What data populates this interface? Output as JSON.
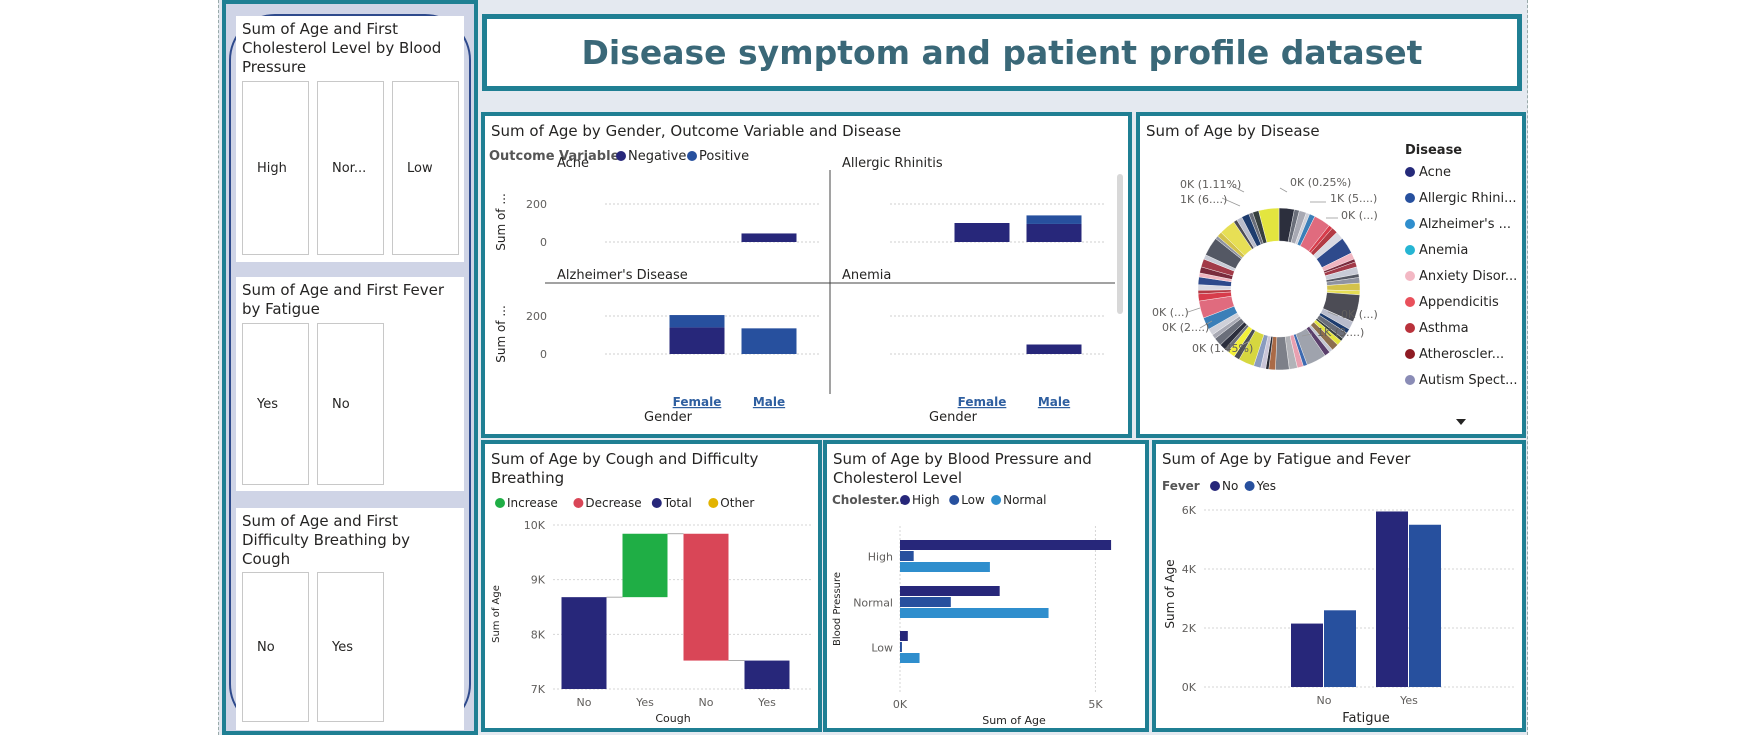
{
  "page_title": "Disease  symptom and patient profile dataset",
  "slicers": [
    {
      "title": "Sum of Age and First Cholesterol Level by Blood Pressure",
      "tiles": [
        "High",
        "Nor...",
        "Low"
      ]
    },
    {
      "title": "Sum of Age and First Fever by Fatigue",
      "tiles": [
        "Yes",
        "No"
      ]
    },
    {
      "title": "Sum of Age and First Difficulty Breathing by Cough",
      "tiles": [
        "No",
        "Yes"
      ]
    }
  ],
  "colors": {
    "navy": "#27277a",
    "blue": "#27509e",
    "light_blue": "#2f8ecd",
    "green": "#1fae45",
    "red": "#d94657",
    "yellow": "#e2b300",
    "border": "#1f7f93"
  },
  "visuals": {
    "gender_outcome": {
      "title": "Sum of Age by Gender, Outcome Variable and Disease",
      "legend_title": "Outcome Variable",
      "legend": [
        "Negative",
        "Positive"
      ],
      "y_axis_title": "Sum of ...",
      "x_axis_title": "Gender",
      "x_ticks": [
        "Female",
        "Male"
      ],
      "y_ticks": [
        "200",
        "0"
      ]
    },
    "disease_donut": {
      "title": "Sum of Age by Disease",
      "legend_title": "Disease",
      "legend": [
        "Acne",
        "Allergic Rhini...",
        "Alzheimer's ...",
        "Anemia",
        "Anxiety Disor...",
        "Appendicitis",
        "Asthma",
        "Atheroscler...",
        "Autism Spect..."
      ],
      "labels": [
        "0K (1.11%)",
        "0K (0.25%)",
        "1K (6....)",
        "1K (5....)",
        "0K (...)",
        "0K (...)",
        "0K (...)",
        "0K (2....)",
        "1K (3....)",
        "0K (1.45%)"
      ]
    },
    "cough_waterfall": {
      "title": "Sum of Age by Cough and Difficulty Breathing",
      "legend": [
        "Increase",
        "Decrease",
        "Total",
        "Other"
      ],
      "y_axis_title": "Sum of Age",
      "x_axis_title": "Cough",
      "y_ticks": [
        "10K",
        "9K",
        "8K",
        "7K"
      ]
    },
    "bp_chol": {
      "title": "Sum of Age by Blood Pressure and Cholesterol Level",
      "legend_title": "Cholester...",
      "legend": [
        "High",
        "Low",
        "Normal"
      ],
      "y_axis_title": "Blood Pressure",
      "x_axis_title": "Sum of Age",
      "x_ticks": [
        "0K",
        "5K"
      ]
    },
    "fatigue_fever": {
      "title": "Sum of Age by Fatigue and Fever",
      "legend_title": "Fever",
      "legend": [
        "No",
        "Yes"
      ],
      "y_axis_title": "Sum of Age",
      "x_axis_title": "Fatigue",
      "y_ticks": [
        "6K",
        "4K",
        "2K",
        "0K"
      ]
    }
  },
  "chart_data": [
    {
      "type": "bar",
      "title": "Sum of Age by Gender, Outcome Variable and Disease",
      "stacked": true,
      "panels": [
        {
          "name": "Acne",
          "categories": [
            "Female",
            "Male"
          ],
          "series": [
            {
              "name": "Negative",
              "values": [
                0,
                45
              ]
            },
            {
              "name": "Positive",
              "values": [
                0,
                0
              ]
            }
          ]
        },
        {
          "name": "Allergic Rhinitis",
          "categories": [
            "Female",
            "Male"
          ],
          "series": [
            {
              "name": "Negative",
              "values": [
                100,
                95
              ]
            },
            {
              "name": "Positive",
              "values": [
                0,
                45
              ]
            }
          ]
        },
        {
          "name": "Alzheimer's Disease",
          "categories": [
            "Female",
            "Male"
          ],
          "series": [
            {
              "name": "Negative",
              "values": [
                140,
                0
              ]
            },
            {
              "name": "Positive",
              "values": [
                65,
                135
              ]
            }
          ]
        },
        {
          "name": "Anemia",
          "categories": [
            "Female",
            "Male"
          ],
          "series": [
            {
              "name": "Negative",
              "values": [
                0,
                50
              ]
            },
            {
              "name": "Positive",
              "values": [
                0,
                0
              ]
            }
          ]
        }
      ],
      "xlabel": "Gender",
      "ylabel": "Sum of ...",
      "ylim": [
        0,
        250
      ]
    },
    {
      "type": "pie",
      "title": "Sum of Age by Disease",
      "donut": true,
      "labels": [
        "Acne",
        "Allergic Rhini...",
        "Alzheimer's ...",
        "Anemia",
        "Anxiety Disor...",
        "Appendicitis",
        "Asthma",
        "Atheroscler...",
        "Autism Spect..."
      ],
      "legend_position": "right"
    },
    {
      "type": "bar",
      "subtype": "waterfall",
      "title": "Sum of Age by Cough and Difficulty Breathing",
      "categories": [
        "No",
        "Yes",
        "No",
        "Yes"
      ],
      "bars": [
        {
          "label": "No",
          "kind": "Total",
          "start": 7000,
          "end": 8680
        },
        {
          "label": "Yes",
          "kind": "Increase",
          "start": 8680,
          "end": 9840
        },
        {
          "label": "No",
          "kind": "Decrease",
          "start": 9840,
          "end": 7520
        },
        {
          "label": "Yes",
          "kind": "Total",
          "start": 7000,
          "end": 7520
        }
      ],
      "xlabel": "Cough",
      "ylabel": "Sum of Age",
      "ylim": [
        7000,
        10000
      ]
    },
    {
      "type": "bar",
      "orientation": "horizontal",
      "title": "Sum of Age by Blood Pressure and Cholesterol Level",
      "categories": [
        "High",
        "Normal",
        "Low"
      ],
      "series": [
        {
          "name": "High",
          "values": [
            5400,
            2550,
            200
          ]
        },
        {
          "name": "Low",
          "values": [
            350,
            1300,
            50
          ]
        },
        {
          "name": "Normal",
          "values": [
            2300,
            3800,
            500
          ]
        }
      ],
      "xlabel": "Sum of Age",
      "ylabel": "Blood Pressure",
      "xlim": [
        0,
        5500
      ]
    },
    {
      "type": "bar",
      "title": "Sum of Age by Fatigue and Fever",
      "categories": [
        "No",
        "Yes"
      ],
      "series": [
        {
          "name": "No",
          "values": [
            2150,
            5950
          ]
        },
        {
          "name": "Yes",
          "values": [
            2600,
            5500
          ]
        }
      ],
      "xlabel": "Fatigue",
      "ylabel": "Sum of Age",
      "ylim": [
        0,
        6000
      ]
    }
  ]
}
